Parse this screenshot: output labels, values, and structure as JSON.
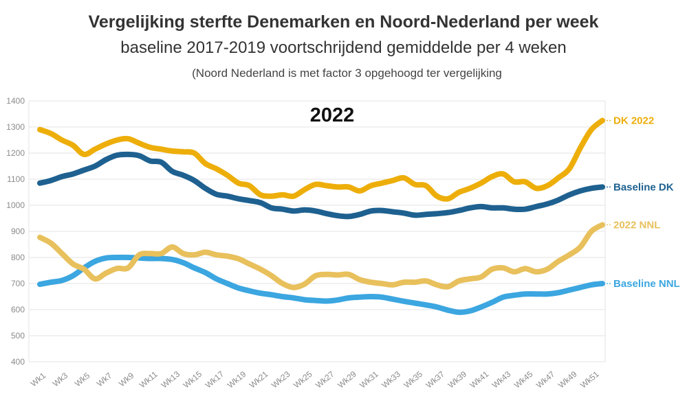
{
  "header": {
    "title": "Vergelijking sterfte Denemarken en Noord-Nederland per week",
    "subtitle": "baseline 2017-2019 voortschrijdend gemiddelde per 4 weken",
    "note": "(Noord Nederland is met factor 3 opgehoogd ter vergelijking"
  },
  "chart_data": {
    "type": "line",
    "title": "Vergelijking sterfte Denemarken en Noord-Nederland per week",
    "subtitle": "baseline 2017-2019 voortschrijdend gemiddelde per 4 weken",
    "annotation": "2022",
    "xlabel": "",
    "ylabel": "",
    "ylim": [
      400,
      1400
    ],
    "yticks": [
      400,
      500,
      600,
      700,
      800,
      900,
      1000,
      1100,
      1200,
      1300,
      1400
    ],
    "grid": true,
    "categories": [
      "Wk1",
      "Wk2",
      "Wk3",
      "Wk4",
      "Wk5",
      "Wk6",
      "Wk7",
      "Wk8",
      "Wk9",
      "Wk10",
      "Wk11",
      "Wk12",
      "Wk13",
      "Wk14",
      "Wk15",
      "Wk16",
      "Wk17",
      "Wk18",
      "Wk19",
      "Wk20",
      "Wk21",
      "Wk22",
      "Wk23",
      "Wk24",
      "Wk25",
      "Wk26",
      "Wk27",
      "Wk28",
      "Wk29",
      "Wk30",
      "Wk31",
      "Wk32",
      "Wk33",
      "Wk34",
      "Wk35",
      "Wk36",
      "Wk37",
      "Wk38",
      "Wk39",
      "Wk40",
      "Wk41",
      "Wk42",
      "Wk43",
      "Wk44",
      "Wk45",
      "Wk46",
      "Wk47",
      "Wk48",
      "Wk49",
      "Wk50",
      "Wk51",
      "Wk52"
    ],
    "xtick_labels": [
      "Wk1",
      "Wk3",
      "Wk5",
      "Wk7",
      "Wk9",
      "Wk11",
      "Wk13",
      "Wk15",
      "Wk17",
      "Wk19",
      "Wk21",
      "Wk23",
      "Wk25",
      "Wk27",
      "Wk29",
      "Wk31",
      "Wk33",
      "Wk35",
      "Wk37",
      "Wk39",
      "Wk41",
      "Wk43",
      "Wk45",
      "Wk47",
      "Wk49",
      "Wk51"
    ],
    "series": [
      {
        "name": "DK 2022",
        "color": "#EDAE0A",
        "values": [
          1290,
          1275,
          1250,
          1230,
          1195,
          1215,
          1235,
          1250,
          1255,
          1238,
          1222,
          1215,
          1208,
          1205,
          1200,
          1160,
          1140,
          1115,
          1085,
          1075,
          1040,
          1035,
          1040,
          1035,
          1060,
          1080,
          1075,
          1070,
          1070,
          1055,
          1075,
          1085,
          1095,
          1105,
          1080,
          1075,
          1035,
          1025,
          1050,
          1065,
          1085,
          1110,
          1120,
          1090,
          1090,
          1065,
          1075,
          1105,
          1140,
          1220,
          1290,
          1325
        ]
      },
      {
        "name": "Baseline DK",
        "color": "#1E6190",
        "values": [
          1085,
          1095,
          1110,
          1120,
          1135,
          1150,
          1175,
          1192,
          1195,
          1190,
          1170,
          1165,
          1130,
          1115,
          1095,
          1065,
          1042,
          1035,
          1025,
          1018,
          1010,
          990,
          985,
          978,
          982,
          978,
          968,
          960,
          957,
          965,
          978,
          980,
          975,
          970,
          962,
          965,
          968,
          972,
          980,
          990,
          995,
          990,
          990,
          985,
          985,
          995,
          1005,
          1020,
          1040,
          1055,
          1065,
          1070
        ]
      },
      {
        "name": "2022 NNL",
        "color": "#E8C05C",
        "values": [
          877,
          855,
          815,
          775,
          755,
          718,
          740,
          758,
          760,
          810,
          815,
          815,
          840,
          815,
          810,
          820,
          810,
          805,
          795,
          775,
          755,
          730,
          700,
          685,
          698,
          730,
          735,
          733,
          735,
          715,
          705,
          700,
          695,
          705,
          705,
          710,
          695,
          688,
          710,
          718,
          725,
          755,
          760,
          745,
          757,
          745,
          755,
          785,
          810,
          840,
          900,
          925
        ]
      },
      {
        "name": "Baseline NNL",
        "color": "#3BA6E0",
        "values": [
          697,
          705,
          712,
          730,
          760,
          785,
          798,
          800,
          800,
          798,
          796,
          796,
          792,
          780,
          760,
          742,
          718,
          700,
          683,
          672,
          663,
          657,
          650,
          645,
          638,
          635,
          633,
          637,
          645,
          648,
          650,
          648,
          640,
          632,
          625,
          618,
          610,
          598,
          590,
          595,
          610,
          628,
          648,
          655,
          660,
          660,
          660,
          665,
          675,
          685,
          695,
          700
        ]
      }
    ]
  }
}
